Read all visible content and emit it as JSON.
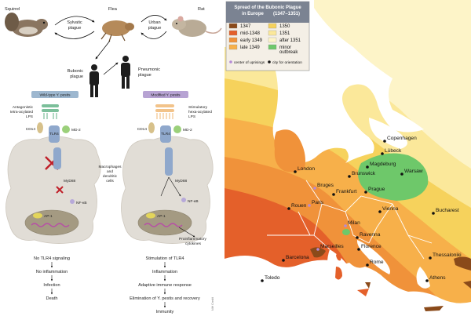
{
  "left_panel": {
    "animals": {
      "squirrel": "Squirrel",
      "flea": "Flea",
      "rat": "Rat",
      "sylvatic": [
        "Sylvatic",
        "plague"
      ],
      "urban": [
        "Urban",
        "plague"
      ],
      "bubonic": [
        "Bubonic",
        "plague"
      ],
      "pneumonic": [
        "Pneumonic",
        "plague"
      ]
    },
    "wild": {
      "tag": "Wild-type Y. pestis",
      "lps_label": [
        "Antagonistic",
        "tetra-acylated",
        "LPS"
      ],
      "cd14": "CD14",
      "tlr4": "TLR4",
      "md2": "MD-2",
      "myd88": "MyD88",
      "nfkb": "NF-κB",
      "ap1": "AP-1",
      "steps": [
        "No TLR4 signaling",
        "No inflammation",
        "Infection",
        "Death"
      ]
    },
    "modified": {
      "tag": "Modified Y. pestis",
      "lps_label": [
        "Stimulatory",
        "hexa-acylated",
        "LPS"
      ],
      "cd14": "CD14",
      "tlr4": "TLR4",
      "md2": "MD-2",
      "myd88": "MyD88",
      "nfkb": "NF-κB",
      "ap1": "AP-1",
      "cytokines": [
        "Proinflammatory",
        "cytokines"
      ],
      "steps": [
        "Stimulation of TLR4",
        "Inflammation",
        "Adaptive immune response",
        "Elimination of Y. pestis and recovery",
        "Immunity"
      ]
    },
    "middle_label": [
      "Macrophages",
      "and",
      "dendritic",
      "cells"
    ],
    "credit": "NIH Credit"
  },
  "map": {
    "title": [
      "Spread of the Bubonic Plague",
      "in Europe",
      "(1347–1351)"
    ],
    "legend": [
      {
        "label": "1347",
        "color": "#8a4a1a"
      },
      {
        "label": "1350",
        "color": "#f6d25c"
      },
      {
        "label": "mid-1348",
        "color": "#e4602a"
      },
      {
        "label": "1351",
        "color": "#fbe89a"
      },
      {
        "label": "early 1349",
        "color": "#f0923a"
      },
      {
        "label": "after 1351",
        "color": "#fdf4c8"
      },
      {
        "label": "late 1349",
        "color": "#f7b04a"
      },
      {
        "label": "minor outbreak",
        "color": "#6ec86a"
      }
    ],
    "legend_markers": [
      "center of uprisings",
      "city for orientation"
    ],
    "colors": {
      "sea": "#ffffff",
      "border": "#ffffff"
    },
    "cities": [
      {
        "name": "Copenhagen"
      },
      {
        "name": "Lübeck"
      },
      {
        "name": "London"
      },
      {
        "name": "Magdeburg"
      },
      {
        "name": "Brunswick"
      },
      {
        "name": "Warsaw"
      },
      {
        "name": "Bruges"
      },
      {
        "name": "Frankfurt"
      },
      {
        "name": "Prague"
      },
      {
        "name": "Rouen"
      },
      {
        "name": "Paris"
      },
      {
        "name": "Vienna"
      },
      {
        "name": "Bucharest"
      },
      {
        "name": "Milan"
      },
      {
        "name": "Ravenna"
      },
      {
        "name": "Marseilles"
      },
      {
        "name": "Florence"
      },
      {
        "name": "Barcelona"
      },
      {
        "name": "Rome"
      },
      {
        "name": "Toledo"
      },
      {
        "name": "Thessaloniki"
      },
      {
        "name": "Athens"
      }
    ]
  }
}
